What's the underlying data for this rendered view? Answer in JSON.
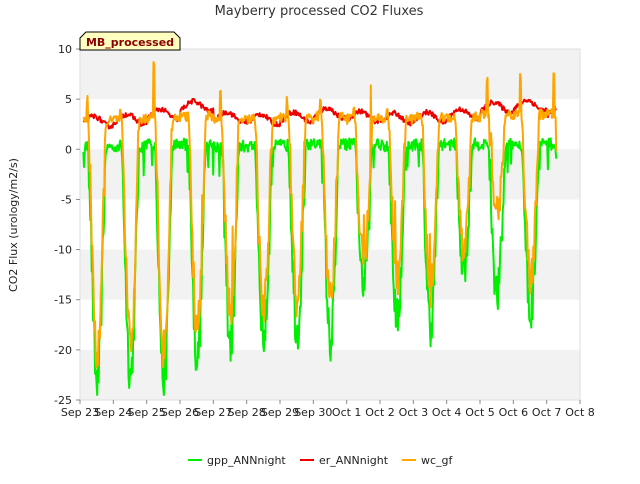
{
  "chart_data": {
    "type": "line",
    "title": "Mayberry processed CO2 Fluxes",
    "ylabel": "CO2 Flux (urology/m2/s)",
    "xlabel": "",
    "ylim": [
      -25,
      10
    ],
    "yticks": [
      -25,
      -20,
      -15,
      -10,
      -5,
      0,
      5,
      10
    ],
    "xlim": [
      0,
      15
    ],
    "xticks": [
      "Sep 23",
      "Sep 24",
      "Sep 25",
      "Sep 26",
      "Sep 27",
      "Sep 28",
      "Sep 29",
      "Sep 30",
      "Oct 1",
      "Oct 2",
      "Oct 3",
      "Oct 4",
      "Oct 5",
      "Oct 6",
      "Oct 7",
      "Oct 8"
    ],
    "x_start_label": "Sep 23",
    "grid": "alternating horizontal bands",
    "legend_placement": "bottom",
    "badge": "MB_processed",
    "colors": {
      "band": "#f2f2f2",
      "badge_bg": "#ffffc0",
      "badge_text": "#8b0000"
    },
    "series": [
      {
        "name": "gpp_ANNnight",
        "color": "#00ee00",
        "daily": [
          {
            "base": 0.2,
            "min": -23.5
          },
          {
            "base": 0.3,
            "min": -22.5
          },
          {
            "base": 0.5,
            "min": -23
          },
          {
            "base": 0.5,
            "min": -21
          },
          {
            "base": 0.3,
            "min": -19.5
          },
          {
            "base": 0.3,
            "min": -18.8
          },
          {
            "base": 0.4,
            "min": -18.2
          },
          {
            "base": 0.5,
            "min": -19.3
          },
          {
            "base": 0.5,
            "min": -13.5
          },
          {
            "base": 0.4,
            "min": -17
          },
          {
            "base": 0.5,
            "min": -17.5
          },
          {
            "base": 0.5,
            "min": -11.5
          },
          {
            "base": 0.5,
            "min": -14.5
          },
          {
            "base": 0.5,
            "min": -16.5
          }
        ],
        "x_end": 14.3
      },
      {
        "name": "er_ANNnight",
        "color": "#ee0000",
        "daily": [
          {
            "base": 2.8
          },
          {
            "base": 3.0
          },
          {
            "base": 3.5
          },
          {
            "base": 4.3
          },
          {
            "base": 3.2
          },
          {
            "base": 3.0
          },
          {
            "base": 3.2
          },
          {
            "base": 3.6
          },
          {
            "base": 3.3
          },
          {
            "base": 3.1
          },
          {
            "base": 3.2
          },
          {
            "base": 3.5
          },
          {
            "base": 4.2
          },
          {
            "base": 4.4
          },
          {
            "base": 3.8
          }
        ],
        "x_end": 14.3
      },
      {
        "name": "wc_gf",
        "color": "#ffa500",
        "daily": [
          {
            "base": 2.8,
            "min": -21,
            "peak": 5.4
          },
          {
            "base": 3.0,
            "min": -19.5,
            "peak": 4.8
          },
          {
            "base": 3.2,
            "min": -20,
            "peak": 8.8
          },
          {
            "base": 3.3,
            "min": -18,
            "peak": 4.0
          },
          {
            "base": 3.0,
            "min": -16,
            "peak": 6.8
          },
          {
            "base": 3.0,
            "min": -15.5,
            "peak": 3.5
          },
          {
            "base": 3.1,
            "min": -15,
            "peak": 5.3
          },
          {
            "base": 3.3,
            "min": -15,
            "peak": 5.0
          },
          {
            "base": 3.0,
            "min": -11,
            "peak": 4.5
          },
          {
            "base": 3.0,
            "min": -13,
            "peak": 4.3
          },
          {
            "base": 3.2,
            "min": -14,
            "peak": 3.6
          },
          {
            "base": 3.2,
            "min": -10,
            "peak": 4.0
          },
          {
            "base": 3.5,
            "min": -6,
            "peak": 7.2
          },
          {
            "base": 3.5,
            "min": -13,
            "peak": 7.8
          }
        ],
        "x_end": 14.3
      }
    ]
  }
}
